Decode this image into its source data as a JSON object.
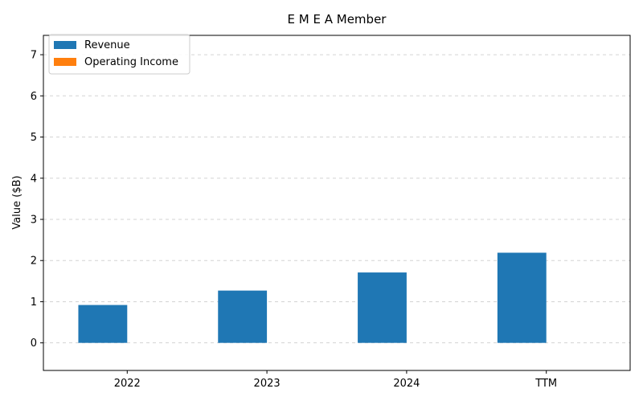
{
  "chart_data": {
    "type": "bar",
    "title": "E M E A Member",
    "xlabel": "",
    "ylabel": "Value ($B)",
    "categories": [
      "2022",
      "2023",
      "2024",
      "TTM"
    ],
    "series": [
      {
        "name": "Revenue",
        "color": "#1f77b4",
        "values": [
          0.92,
          1.27,
          1.71,
          2.19
        ]
      },
      {
        "name": "Operating Income",
        "color": "#ff7f0e",
        "values": [
          0,
          0,
          0,
          0
        ]
      }
    ],
    "ylim": [
      -0.67,
      7.47
    ],
    "yticks": [
      0,
      1,
      2,
      3,
      4,
      5,
      6,
      7
    ],
    "grid": "y, dashed",
    "legend": "top-left"
  }
}
